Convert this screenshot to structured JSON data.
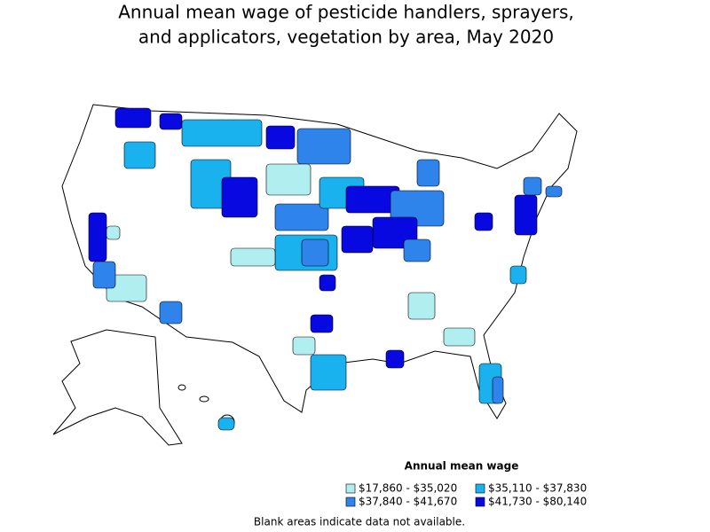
{
  "header": {
    "title_lines": [
      "Annual mean wage of pesticide handlers, sprayers,",
      "and applicators, vegetation by area, May 2020"
    ]
  },
  "legend": {
    "title": "Annual mean wage",
    "entries": [
      {
        "label": "$17,860 - $35,020",
        "color": "#b0eef0"
      },
      {
        "label": "$35,110 - $37,830",
        "color": "#19b2ee"
      },
      {
        "label": "$37,840 - $41,670",
        "color": "#2e84ea"
      },
      {
        "label": "$41,730 - $80,140",
        "color": "#0808e0"
      }
    ]
  },
  "note": "Blank areas indicate data not available."
}
